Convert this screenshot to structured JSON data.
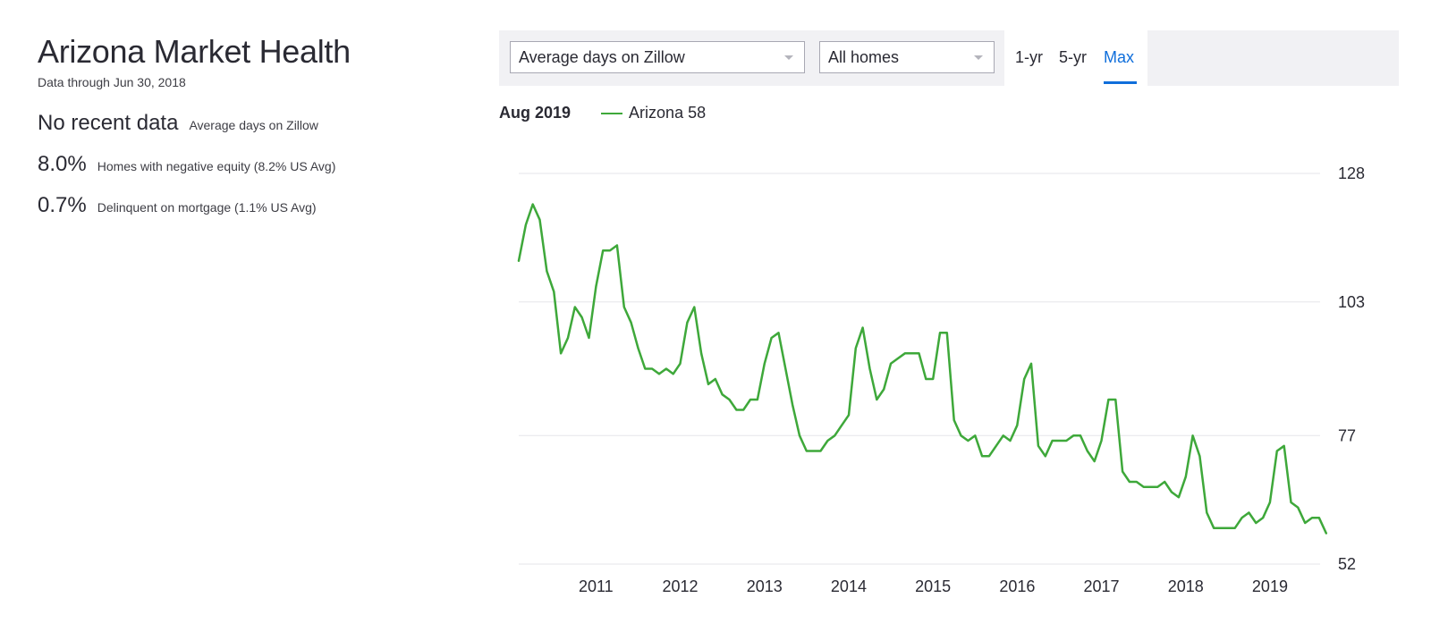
{
  "header": {
    "title": "Arizona Market Health",
    "subtitle": "Data through Jun 30, 2018"
  },
  "stats": [
    {
      "value": "No recent data",
      "label": "Average days on Zillow"
    },
    {
      "value": "8.0%",
      "label": "Homes with negative equity (8.2% US Avg)"
    },
    {
      "value": "0.7%",
      "label": "Delinquent on mortgage (1.1% US Avg)"
    }
  ],
  "toolbar": {
    "metric_select": "Average days on Zillow",
    "home_type_select": "All homes",
    "ranges": [
      "1-yr",
      "5-yr",
      "Max"
    ],
    "active_range": "Max"
  },
  "legend": {
    "date": "Aug 2019",
    "series_label": "Arizona 58"
  },
  "colors": {
    "series": "#3ea83a",
    "accent": "#0f6edb",
    "grid": "#e6e6ea"
  },
  "chart_data": {
    "type": "line",
    "x_label_ticks": [
      "2011",
      "2012",
      "2013",
      "2014",
      "2015",
      "2016",
      "2017",
      "2018",
      "2019"
    ],
    "y_ticks": [
      52,
      77,
      103,
      128
    ],
    "ylim": [
      52,
      128
    ],
    "grid": true,
    "y_axis_side": "right",
    "series": [
      {
        "name": "Arizona",
        "x_start": "2010-02",
        "x_step": "month",
        "values": [
          111,
          118,
          122,
          119,
          109,
          105,
          93,
          96,
          102,
          100,
          96,
          106,
          113,
          113,
          114,
          102,
          99,
          94,
          90,
          90,
          89,
          90,
          89,
          91,
          99,
          102,
          93,
          87,
          88,
          85,
          84,
          82,
          82,
          84,
          84,
          91,
          96,
          97,
          90,
          83,
          77,
          74,
          74,
          74,
          76,
          77,
          79,
          81,
          94,
          98,
          90,
          84,
          86,
          91,
          92,
          93,
          93,
          93,
          88,
          88,
          97,
          97,
          80,
          77,
          76,
          77,
          73,
          73,
          75,
          77,
          76,
          79,
          88,
          91,
          75,
          73,
          76,
          76,
          76,
          77,
          77,
          74,
          72,
          76,
          84,
          84,
          70,
          68,
          68,
          67,
          67,
          67,
          68,
          66,
          65,
          69,
          77,
          73,
          62,
          59,
          59,
          59,
          59,
          61,
          62,
          60,
          61,
          64,
          74,
          75,
          64,
          63,
          60,
          61,
          61,
          58
        ]
      }
    ]
  }
}
